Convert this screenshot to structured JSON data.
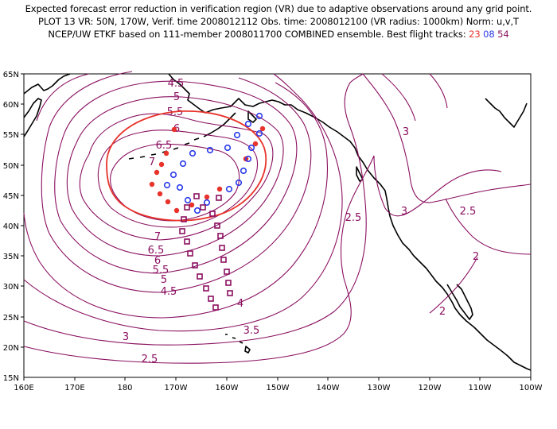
{
  "header": {
    "line1": "Expected forecast error reduction in verification region (VR) due to adaptive observations around any grid point.",
    "line2": "PLOT 13 VR: 50N, 170W, Verif. time 2008012112 Obs. time: 2008012100 (VR radius: 1000km) Norm: u,v,T",
    "line3_prefix": "NCEP/UW ETKF based on 111-member 2008011700 COMBINED ensemble.  Best flight tracks:",
    "track_red": "23",
    "track_blue": "08",
    "track_purple": "54"
  },
  "map": {
    "lon_labels": [
      "160E",
      "170E",
      "180",
      "170W",
      "160W",
      "150W",
      "140W",
      "130W",
      "120W",
      "110W",
      "100W"
    ],
    "lat_labels": [
      "65N",
      "60N",
      "55N",
      "50N",
      "45N",
      "40N",
      "35N",
      "30N",
      "25N",
      "20N",
      "15N"
    ],
    "contour_labels": [
      "4.5",
      "5",
      "5.5",
      "6",
      "6.5",
      "7",
      "7",
      "6.5",
      "6",
      "5.5",
      "5",
      "4.5",
      "4",
      "3.5",
      "3",
      "2.5",
      "3",
      "3",
      "2.5",
      "2.5",
      "2",
      "2"
    ],
    "colors": {
      "contour": "#8a1060",
      "vr_circle": "#e8322a",
      "track23": "#e8322a",
      "track08": "#2a3ae8",
      "track54": "#8a1060",
      "coast": "#000000"
    }
  }
}
